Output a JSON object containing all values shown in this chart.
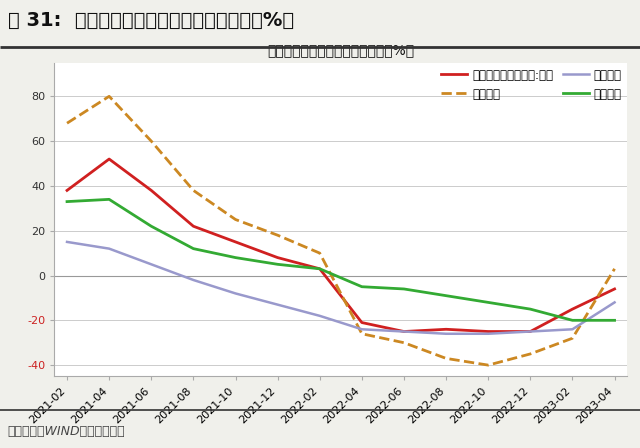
{
  "title_outer": "图 31:  房地产开发资金来源细项累计增速（%）",
  "title_inner": "房地产开发资金来源：累计增速（%）",
  "source": "资料来源：WIND，财信研究院",
  "x_labels": [
    "2021-02",
    "2021-04",
    "2021-06",
    "2021-08",
    "2021-10",
    "2021-12",
    "2022-02",
    "2022-04",
    "2022-06",
    "2022-08",
    "2022-10",
    "2022-12",
    "2023-02",
    "2023-04"
  ],
  "series": [
    {
      "key": "total",
      "label": "房地产开发资金来源:累计",
      "color": "#d02020",
      "linestyle": "solid",
      "linewidth": 2.0,
      "values": [
        38,
        52,
        38,
        22,
        15,
        8,
        3,
        -21,
        -25,
        -24,
        -25,
        -25,
        -15,
        -6
      ]
    },
    {
      "key": "other",
      "label": "其他资金",
      "color": "#cc8822",
      "linestyle": "dashed",
      "linewidth": 2.0,
      "values": [
        68,
        80,
        60,
        38,
        25,
        18,
        10,
        -26,
        -30,
        -37,
        -40,
        -35,
        -28,
        3
      ]
    },
    {
      "key": "domestic_loan",
      "label": "国内贷款",
      "color": "#9999cc",
      "linestyle": "solid",
      "linewidth": 1.8,
      "values": [
        15,
        12,
        5,
        -2,
        -8,
        -13,
        -18,
        -24,
        -25,
        -26,
        -26,
        -25,
        -24,
        -12
      ]
    },
    {
      "key": "self_raised",
      "label": "自筹资金",
      "color": "#33aa33",
      "linestyle": "solid",
      "linewidth": 2.0,
      "values": [
        33,
        34,
        22,
        12,
        8,
        5,
        3,
        -5,
        -6,
        -9,
        -12,
        -15,
        -20,
        -20
      ]
    }
  ],
  "ylim": [
    -45,
    95
  ],
  "yticks": [
    -40,
    -20,
    0,
    20,
    40,
    60,
    80
  ],
  "neg_ytick_color": "#cc2222",
  "pos_ytick_color": "#333333",
  "background_color": "#f0f0eb",
  "plot_bg_color": "#ffffff",
  "grid_color": "#cccccc",
  "outer_title_fontsize": 14,
  "inner_title_fontsize": 11,
  "source_fontsize": 9,
  "tick_fontsize": 8,
  "legend_fontsize": 8.5
}
